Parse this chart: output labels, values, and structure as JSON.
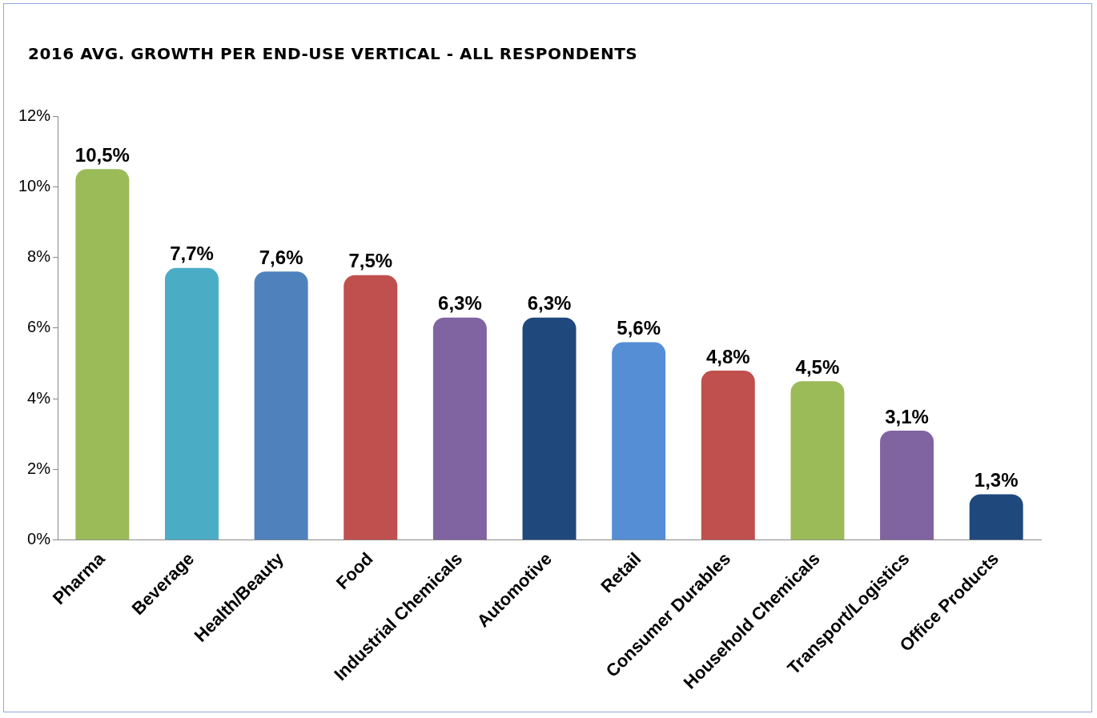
{
  "chart_data": {
    "type": "bar",
    "title": "2016 AVG. GROWTH PER END-USE VERTICAL - ALL RESPONDENTS",
    "categories": [
      "Pharma",
      "Beverage",
      "Health/Beauty",
      "Food",
      "Industrial Chemicals",
      "Automotive",
      "Retail",
      "Consumer Durables",
      "Household Chemicals",
      "Transport/Logistics",
      "Office Products"
    ],
    "values": [
      10.5,
      7.7,
      7.6,
      7.5,
      6.3,
      6.3,
      5.6,
      4.8,
      4.5,
      3.1,
      1.3
    ],
    "value_labels": [
      "10,5%",
      "7,7%",
      "7,6%",
      "7,5%",
      "6,3%",
      "6,3%",
      "5,6%",
      "4,8%",
      "4,5%",
      "3,1%",
      "1,3%"
    ],
    "colors": [
      "#9bbb59",
      "#4bacc6",
      "#4f81bd",
      "#c0504d",
      "#8064a2",
      "#1f497d",
      "#558ed5",
      "#c0504d",
      "#9bbb59",
      "#8064a2",
      "#1f497d"
    ],
    "ylim": [
      0,
      12
    ],
    "yticks": [
      {
        "value": 0,
        "label": "0%"
      },
      {
        "value": 2,
        "label": "2%"
      },
      {
        "value": 4,
        "label": "4%"
      },
      {
        "value": 6,
        "label": "6%"
      },
      {
        "value": 8,
        "label": "8%"
      },
      {
        "value": 10,
        "label": "10%"
      },
      {
        "value": 12,
        "label": "12%"
      }
    ],
    "grid": false,
    "legend": false
  }
}
